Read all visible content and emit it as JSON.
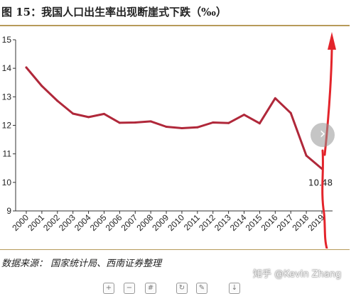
{
  "page": {
    "title": "图 15：我国人口出生率出现断崖式下跌（‰）",
    "source": "数据来源：   国家统计局、西南证券整理",
    "watermark": "知乎 @Kevin Zhang"
  },
  "colors": {
    "line": "#b0283a",
    "rule": "#b79a5a",
    "arrow": "#e3242b",
    "text": "#222222"
  },
  "icons": {
    "next": "chevron-right-icon",
    "toolbar": [
      "zoom-in-icon",
      "zoom-out-icon",
      "grid-icon",
      "rotate-icon",
      "edit-icon",
      "download-icon"
    ]
  },
  "chart_data": {
    "type": "line",
    "title": "图 15：我国人口出生率出现断崖式下跌（‰）",
    "xlabel": "",
    "ylabel": "",
    "x": [
      "2000",
      "2001",
      "2002",
      "2003",
      "2004",
      "2005",
      "2006",
      "2007",
      "2008",
      "2009",
      "2010",
      "2011",
      "2012",
      "2013",
      "2014",
      "2015",
      "2016",
      "2017",
      "2018",
      "2019"
    ],
    "series": [
      {
        "values": [
          14.03,
          13.38,
          12.86,
          12.41,
          12.29,
          12.4,
          12.09,
          12.1,
          12.14,
          11.95,
          11.9,
          11.93,
          12.1,
          12.08,
          12.37,
          12.07,
          12.95,
          12.43,
          10.94,
          10.48
        ]
      }
    ],
    "ylim": [
      9,
      15
    ],
    "yticks": [
      "9",
      "10",
      "11",
      "12",
      "13",
      "14",
      "15"
    ],
    "annotations": [
      {
        "text": "10.48",
        "x": "2019",
        "y": 10.48
      }
    ],
    "grid": false,
    "legend": "none"
  }
}
